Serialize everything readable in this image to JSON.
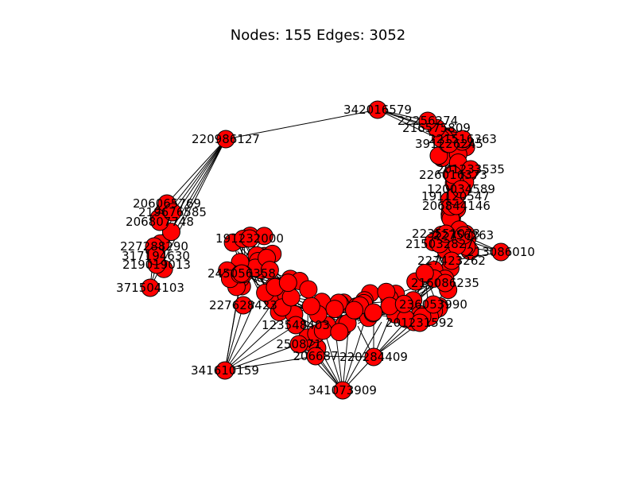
{
  "figure": {
    "title": "Nodes: 155 Edges: 3052",
    "nodes_count": 155,
    "edges_count": 3052,
    "colors": {
      "node_fill": "#ff0000",
      "node_stroke": "#000000",
      "edge": "#000000",
      "background": "#ffffff"
    }
  },
  "labels": {
    "n1": "342016579",
    "n2": "220986127",
    "n3": "341610159",
    "n4": "341073909",
    "n5": "371504103",
    "n6": "220284409",
    "n7": "206065769",
    "n8": "206807748",
    "n9": "227288290",
    "n10": "219019013",
    "n11": "206844146",
    "n12": "213086010",
    "n13": "250871",
    "n14": "206687",
    "n15": "219676585",
    "n16": "317194630",
    "n17": "201233535",
    "n18": "191120547",
    "n19": "226016373",
    "n20": "120034589",
    "n21": "221516363",
    "n22": "391226245",
    "n23": "216575809",
    "n24": "215032827",
    "n25": "223551073",
    "n26": "191232000",
    "n27": "227423262",
    "n28": "216086235",
    "n29": "236053990",
    "n30": "201231592",
    "n31": "123548403",
    "n32": "227628423",
    "n33": "245056358",
    "n34": "22256274",
    "n35": "22756263"
  },
  "highlights": [
    "n1",
    "n2",
    "n3",
    "n4",
    "n5",
    "n6",
    "n7",
    "n8",
    "n9",
    "n10",
    "n11",
    "n12",
    "n13",
    "n14",
    "n15",
    "n16",
    "n17",
    "n18",
    "n19",
    "n20",
    "n21",
    "n22",
    "n23",
    "n24",
    "n25",
    "n26",
    "n27",
    "n28",
    "n29",
    "n30",
    "n31",
    "n32",
    "n33",
    "n34",
    "n35"
  ]
}
